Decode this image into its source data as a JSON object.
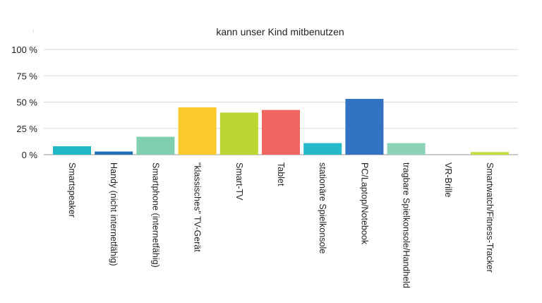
{
  "chart_data": {
    "type": "bar",
    "title": "kann unser Kind mitbenutzen",
    "xlabel": "",
    "ylabel": "",
    "ylim": [
      0,
      100
    ],
    "y_ticks": [
      "0 %",
      "25 %",
      "50 %",
      "75 %",
      "100 %"
    ],
    "y_tick_values": [
      0,
      25,
      50,
      75,
      100
    ],
    "grid": true,
    "legend": "none",
    "categories": [
      "Smartspeaker",
      "Handy (nicht internetfähig)",
      "Smartphone (internetfähig)",
      "\"klassisches\" TV-Gerät",
      "Smart-TV",
      "Tablet",
      "stationäre Spielkonsole",
      "PC/Laptop/Notebook",
      "tragbare Spielkonsole/Handheld",
      "VR-Brille",
      "Smartwatch/Fitness-Tracker"
    ],
    "values": [
      8,
      3,
      17,
      45,
      40,
      42.5,
      11,
      53,
      11,
      0,
      2.5
    ],
    "colors": [
      "#1fb6c6",
      "#1f6fb3",
      "#80cfae",
      "#fcc92b",
      "#bcd531",
      "#f26661",
      "#26b9c8",
      "#3272c2",
      "#8dd2b4",
      "#cccccc",
      "#c5dc3c"
    ]
  }
}
